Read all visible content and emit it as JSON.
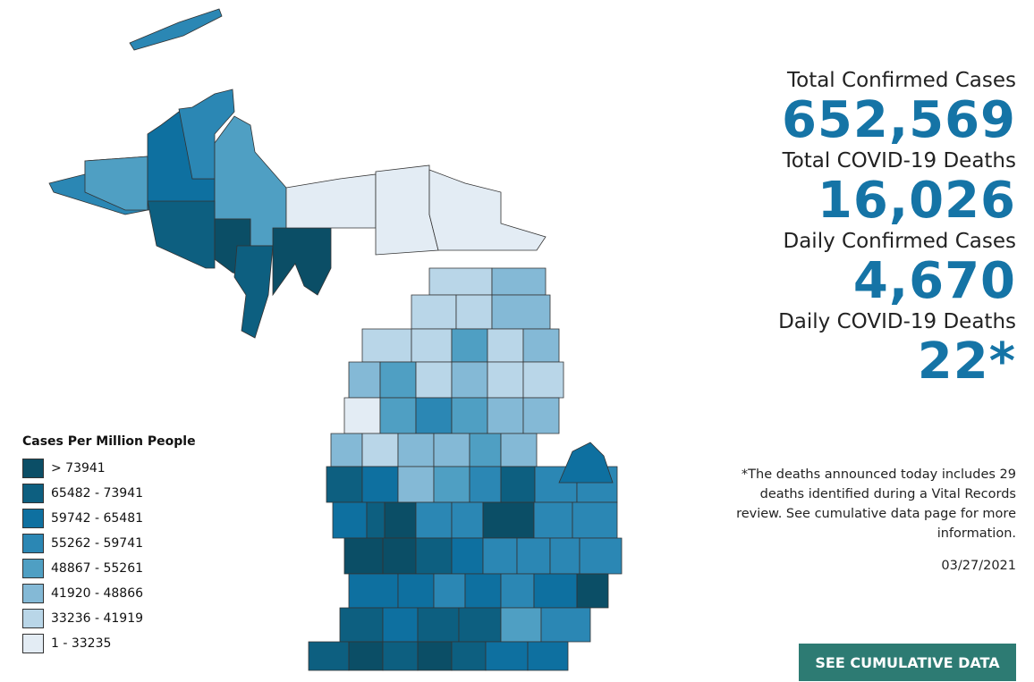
{
  "legend": {
    "title": "Cases Per Million People",
    "items": [
      {
        "label": "> 73941",
        "color": "#0b4e66"
      },
      {
        "label": "65482 - 73941",
        "color": "#0d5f80"
      },
      {
        "label": "59742 - 65481",
        "color": "#0e70a0"
      },
      {
        "label": "55262 - 59741",
        "color": "#2b87b4"
      },
      {
        "label": "48867 - 55261",
        "color": "#4f9fc3"
      },
      {
        "label": "41920 - 48866",
        "color": "#84b9d6"
      },
      {
        "label": "33236 - 41919",
        "color": "#b9d6e8"
      },
      {
        "label": "1 - 33235",
        "color": "#e3ecf4"
      }
    ]
  },
  "stats": [
    {
      "label": "Total Confirmed Cases",
      "value": "652,569"
    },
    {
      "label": "Total COVID-19 Deaths",
      "value": "16,026"
    },
    {
      "label": "Daily Confirmed Cases",
      "value": "4,670"
    },
    {
      "label": "Daily COVID-19 Deaths",
      "value": "22*"
    }
  ],
  "footnote": "*The deaths announced today includes 29 deaths identified during a Vital Records review. See cumulative data page for more information.",
  "date": "03/27/2021",
  "button": "SEE CUMULATIVE DATA"
}
